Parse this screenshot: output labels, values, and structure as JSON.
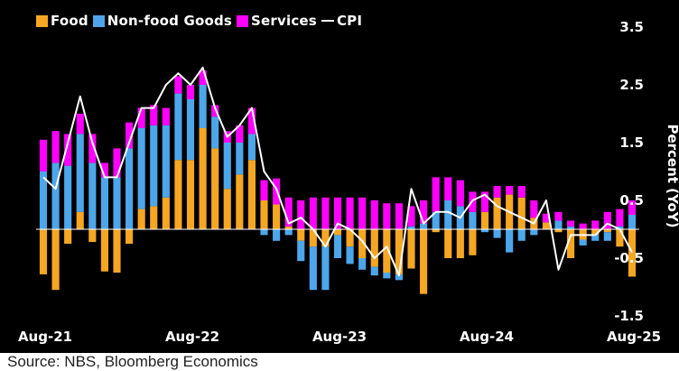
{
  "source": "Source: NBS, Bloomberg Economics",
  "colors": {
    "background": "#000000",
    "food": "#f5a623",
    "nonfood": "#4da6ea",
    "services": "#ff00ff",
    "cpi": "#ffffff"
  },
  "chart_data": {
    "type": "bar",
    "stacked": true,
    "x_tick_labels": [
      "Aug-21",
      "Aug-22",
      "Aug-23",
      "Aug-24",
      "Aug-25"
    ],
    "x_tick_indices": [
      0,
      12,
      24,
      36,
      48
    ],
    "ylabel": "Percent (YoY)",
    "ylim": [
      -1.5,
      3.5
    ],
    "y_ticks": [
      3.5,
      2.5,
      1.5,
      0.5,
      -0.5,
      -1.5
    ],
    "y_axis_position": "right",
    "legend_position": "top-left",
    "legend": [
      "Food",
      "Non-food Goods",
      "Services",
      "CPI"
    ],
    "categories": [
      "Aug-21",
      "Sep-21",
      "Oct-21",
      "Nov-21",
      "Dec-21",
      "Jan-22",
      "Feb-22",
      "Mar-22",
      "Apr-22",
      "May-22",
      "Jun-22",
      "Jul-22",
      "Aug-22",
      "Sep-22",
      "Oct-22",
      "Nov-22",
      "Dec-22",
      "Jan-23",
      "Feb-23",
      "Mar-23",
      "Apr-23",
      "May-23",
      "Jun-23",
      "Jul-23",
      "Aug-23",
      "Sep-23",
      "Oct-23",
      "Nov-23",
      "Dec-23",
      "Jan-24",
      "Feb-24",
      "Mar-24",
      "Apr-24",
      "May-24",
      "Jun-24",
      "Jul-24",
      "Aug-24",
      "Sep-24",
      "Oct-24",
      "Nov-24",
      "Dec-24",
      "Jan-25",
      "Feb-25",
      "Mar-25",
      "Apr-25",
      "May-25",
      "Jun-25",
      "Jul-25",
      "Aug-25"
    ],
    "series": [
      {
        "name": "Food",
        "color": "#f5a623",
        "values": [
          -0.78,
          -1.05,
          -0.25,
          0.3,
          -0.22,
          -0.73,
          -0.75,
          -0.25,
          0.35,
          0.4,
          0.55,
          1.2,
          1.2,
          1.75,
          1.4,
          0.7,
          0.95,
          1.2,
          0.5,
          0.43,
          0.05,
          -0.2,
          -0.3,
          -0.3,
          -0.1,
          -0.3,
          -0.5,
          -0.65,
          -0.75,
          -0.78,
          -0.68,
          -1.12,
          -0.05,
          -0.5,
          -0.5,
          -0.45,
          0.3,
          0.55,
          0.6,
          0.55,
          0.2,
          0.12,
          -0.05,
          -0.5,
          -0.18,
          -0.1,
          -0.05,
          -0.3,
          -0.82
        ]
      },
      {
        "name": "Non-food Goods",
        "color": "#4da6ea",
        "values": [
          1.0,
          1.15,
          1.1,
          1.35,
          1.15,
          0.9,
          0.9,
          1.4,
          1.4,
          1.4,
          1.25,
          1.15,
          1.05,
          0.75,
          0.55,
          0.8,
          0.55,
          0.45,
          -0.1,
          -0.2,
          -0.1,
          -0.35,
          -0.75,
          -0.75,
          -0.4,
          -0.3,
          -0.2,
          -0.15,
          -0.1,
          -0.1,
          0.05,
          0.1,
          0.3,
          0.5,
          0.4,
          0.3,
          -0.05,
          -0.15,
          -0.4,
          -0.2,
          -0.1,
          0.0,
          0.15,
          0.05,
          -0.1,
          -0.1,
          -0.15,
          0.05,
          0.25
        ]
      },
      {
        "name": "Services",
        "color": "#ff00ff",
        "values": [
          0.55,
          0.55,
          0.55,
          0.35,
          0.5,
          0.25,
          0.5,
          0.45,
          0.35,
          0.35,
          0.3,
          0.3,
          0.25,
          0.25,
          0.2,
          0.2,
          0.3,
          0.45,
          0.35,
          0.45,
          0.5,
          0.5,
          0.55,
          0.55,
          0.55,
          0.55,
          0.55,
          0.5,
          0.45,
          0.45,
          0.35,
          0.4,
          0.6,
          0.4,
          0.45,
          0.35,
          0.35,
          0.2,
          0.15,
          0.2,
          0.3,
          0.15,
          0.15,
          0.1,
          0.1,
          0.15,
          0.3,
          0.3,
          0.25
        ]
      },
      {
        "name": "CPI",
        "color": "#ffffff",
        "type": "line",
        "values": [
          0.9,
          0.7,
          1.5,
          2.3,
          1.5,
          0.9,
          0.9,
          1.5,
          2.1,
          2.1,
          2.5,
          2.7,
          2.5,
          2.8,
          2.1,
          1.6,
          1.8,
          2.1,
          1.0,
          0.7,
          0.1,
          0.2,
          0.0,
          -0.3,
          0.1,
          0.0,
          -0.2,
          -0.5,
          -0.3,
          -0.8,
          0.7,
          0.1,
          0.3,
          0.3,
          0.2,
          0.5,
          0.6,
          0.4,
          0.3,
          0.2,
          0.1,
          0.5,
          -0.7,
          -0.1,
          -0.1,
          -0.1,
          0.1,
          0.0,
          -0.4
        ]
      }
    ]
  }
}
